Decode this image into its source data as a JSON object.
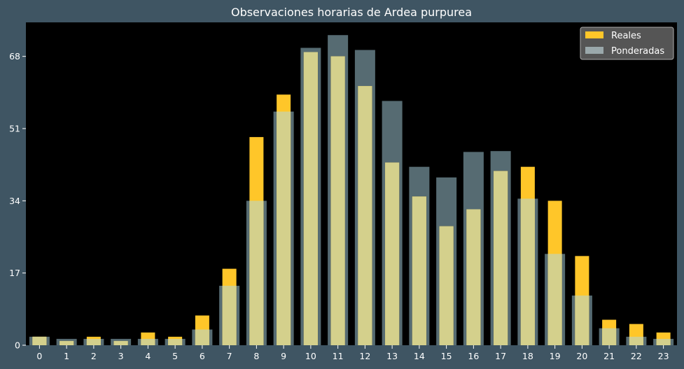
{
  "chart_data": {
    "type": "bar",
    "title": "Observaciones horarias de Ardea purpurea",
    "xlabel": "",
    "ylabel": "",
    "categories": [
      "0",
      "1",
      "2",
      "3",
      "4",
      "5",
      "6",
      "7",
      "8",
      "9",
      "10",
      "11",
      "12",
      "13",
      "14",
      "15",
      "16",
      "17",
      "18",
      "19",
      "20",
      "21",
      "22",
      "23"
    ],
    "series": [
      {
        "name": "Reales",
        "color": "#ffc629",
        "values": [
          2,
          1,
          2,
          1,
          3,
          2,
          7,
          18,
          49,
          59,
          69,
          68,
          61,
          43,
          35,
          28,
          32,
          41,
          42,
          34,
          21,
          6,
          5,
          3
        ]
      },
      {
        "name": "Ponderadas",
        "color": "#9aa8ab",
        "values": [
          2,
          1.5,
          1.5,
          1.5,
          1.5,
          1.5,
          3.7,
          14,
          34,
          55,
          70,
          73,
          69.5,
          57.5,
          42,
          39.5,
          45.5,
          45.7,
          34.5,
          21.5,
          11.7,
          4,
          2,
          1.5
        ]
      }
    ],
    "ylim": [
      0,
      76
    ],
    "yticks": [
      0,
      17,
      34,
      51,
      68
    ],
    "grid": false,
    "legend": "top-right",
    "colors": {
      "background": "#3f5563",
      "plot_background": "#000000",
      "overlap": "#d4d08c",
      "ponderadas_bar": "#566b72"
    }
  }
}
